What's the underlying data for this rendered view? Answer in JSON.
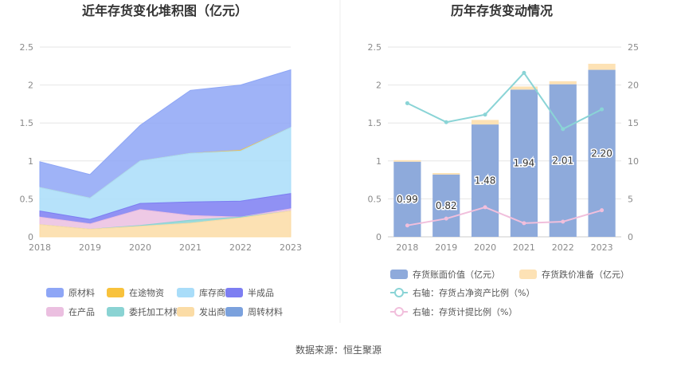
{
  "footer": "数据来源：恒生聚源",
  "chart_data": [
    {
      "type": "area",
      "title": "近年存货变化堆积图（亿元）",
      "x": [
        "2018",
        "2019",
        "2020",
        "2021",
        "2022",
        "2023"
      ],
      "ylim": [
        0,
        2.5
      ],
      "yticks": [
        "0",
        "0.5",
        "1",
        "1.5",
        "2",
        "2.5"
      ],
      "grid": true,
      "legend_position": "bottom",
      "series": [
        {
          "name": "原材料",
          "color": "#8ea6f6",
          "values": [
            0.34,
            0.31,
            0.47,
            0.83,
            0.86,
            0.76
          ]
        },
        {
          "name": "在途物资",
          "color": "#f8c23c",
          "values": [
            0,
            0,
            0,
            0,
            0.01,
            0
          ]
        },
        {
          "name": "库存商品",
          "color": "#a9ddf9",
          "values": [
            0.31,
            0.28,
            0.56,
            0.64,
            0.66,
            0.87
          ]
        },
        {
          "name": "半成品",
          "color": "#7d7ef2",
          "values": [
            0.08,
            0.06,
            0.08,
            0.18,
            0.21,
            0.2
          ]
        },
        {
          "name": "在产品",
          "color": "#ebbfe0",
          "values": [
            0.1,
            0.07,
            0.21,
            0.06,
            0,
            0.03
          ]
        },
        {
          "name": "委托加工材料",
          "color": "#8ad3d3",
          "values": [
            0,
            0,
            0.01,
            0.04,
            0.01,
            0
          ]
        },
        {
          "name": "发出商品",
          "color": "#fbdca6",
          "values": [
            0.16,
            0.1,
            0.14,
            0.18,
            0.25,
            0.34
          ]
        },
        {
          "name": "周转材料",
          "color": "#7ba1dd",
          "values": [
            0,
            0,
            0,
            0,
            0,
            0
          ]
        }
      ]
    },
    {
      "type": "bar",
      "title": "历年存货变动情况",
      "categories": [
        "2018",
        "2019",
        "2020",
        "2021",
        "2022",
        "2023"
      ],
      "ylim": [
        0,
        2.5
      ],
      "yticks": [
        "0",
        "0.5",
        "1",
        "1.5",
        "2",
        "2.5"
      ],
      "y2lim": [
        0,
        25
      ],
      "y2ticks": [
        "0",
        "5",
        "10",
        "15",
        "20",
        "25"
      ],
      "grid": true,
      "legend_position": "bottom",
      "bar_series": [
        {
          "name": "存货账面价值（亿元）",
          "color": "#8eaadb",
          "values": [
            0.99,
            0.82,
            1.48,
            1.94,
            2.01,
            2.2
          ],
          "labels": [
            "0.99",
            "0.82",
            "1.48",
            "1.94",
            "2.01",
            "2.20"
          ]
        },
        {
          "name": "存货跌价准备（亿元）",
          "color": "#fde2b5",
          "values": [
            0.02,
            0.02,
            0.06,
            0.04,
            0.04,
            0.08
          ]
        }
      ],
      "line_series": [
        {
          "name": "右轴：存货占净资产比例（%）",
          "color": "#8ad4d6",
          "axis": "right",
          "values": [
            17.6,
            15.1,
            16.1,
            21.6,
            14.2,
            16.8
          ]
        },
        {
          "name": "右轴：存货计提比例（%）",
          "color": "#f1bfdc",
          "axis": "right",
          "values": [
            1.5,
            2.4,
            3.9,
            1.8,
            2.0,
            3.5
          ]
        }
      ]
    }
  ]
}
